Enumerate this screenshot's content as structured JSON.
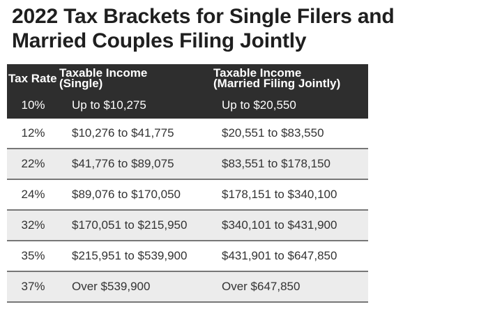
{
  "title": {
    "line1": "2022 Tax Brackets for Single Filers and",
    "line2": "Married Couples Filing Jointly"
  },
  "header": {
    "rate": "Tax Rate",
    "single_line1": "Taxable Income",
    "single_line2": "(Single)",
    "married_line1": "Taxable Income",
    "married_line2": "(Married Filing Jointly)"
  },
  "colors": {
    "title_text": "#1f1f1f",
    "header_bg": "#2e2e2e",
    "header_text": "#ffffff",
    "row_bg": "#ffffff",
    "alt_row_bg": "#ececec",
    "divider": "#777777",
    "body_text": "#333333"
  },
  "chart_data": {
    "type": "table",
    "title": "2022 Tax Brackets for Single Filers and Married Couples Filing Jointly",
    "columns": [
      "Tax Rate",
      "Taxable Income (Single)",
      "Taxable Income (Married Filing Jointly)"
    ],
    "rows": [
      [
        "10%",
        "Up to $10,275",
        "Up to $20,550"
      ],
      [
        "12%",
        "$10,276 to $41,775",
        "$20,551 to $83,550"
      ],
      [
        "22%",
        "$41,776 to $89,075",
        "$83,551 to $178,150"
      ],
      [
        "24%",
        "$89,076 to $170,050",
        "$178,151 to $340,100"
      ],
      [
        "32%",
        "$170,051 to $215,950",
        "$340,101 to $431,900"
      ],
      [
        "35%",
        "$215,951 to $539,900",
        "$431,901 to $647,850"
      ],
      [
        "37%",
        "Over $539,900",
        "Over $647,850"
      ]
    ]
  }
}
